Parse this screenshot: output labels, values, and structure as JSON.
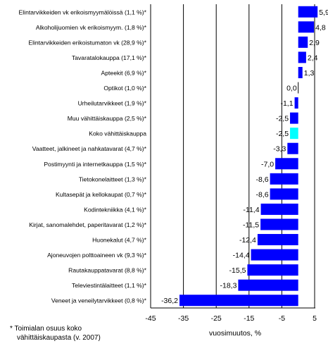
{
  "chart_data": {
    "type": "bar",
    "orientation": "horizontal",
    "xlabel": "vuosimuutos, %",
    "xlim": [
      -45,
      5
    ],
    "xticks": [
      -45,
      -35,
      -25,
      -15,
      -5,
      5
    ],
    "grid": true,
    "categories": [
      "Elintarvikkeiden vk erikoismyymälöissä (1,1 %)*",
      "Alkoholijuomien vk erikoismyym. (1,8 %)*",
      "Elintarvikkeiden erikoistumaton vk (28,9 %)*",
      "Tavaratalokauppa (17,1 %)*",
      "Apteekit (6,9 %)*",
      "Optikot (1,0 %)*",
      "Urheilutarvikkeet (1,9 %)*",
      "Muu vähittäiskauppa (2,5 %)*",
      "Koko vähittäiskauppa",
      "Vaatteet, jalkineet ja nahkatavarat (4,7 %)*",
      "Postimyynti ja internetkauppa (1,5 %)*",
      "Tietokonelaitteet (1,3 %)*",
      "Kultasepät ja kellokaupat (0,7 %)*",
      "Kodintekniikka (4,1 %)*",
      "Kirjat, sanomalehdet, paperitavarat (1,2 %)*",
      "Huonekalut (4,7 %)*",
      "Ajoneuvojen polttoaineen vk (9,3 %)*",
      "Rautakauppatavarat (8,8 %)*",
      "Televiestintälaitteet (1,1 %)*",
      "Veneet ja veneilytarvikkeet (0,8 %)*"
    ],
    "values": [
      5.9,
      4.8,
      2.9,
      2.4,
      1.3,
      0.0,
      -1.1,
      -2.5,
      -2.5,
      -3.3,
      -7.0,
      -8.6,
      -8.6,
      -11.4,
      -11.5,
      -12.4,
      -14.4,
      -15.5,
      -18.3,
      -36.2
    ],
    "value_labels": [
      "5,9",
      "4,8",
      "2,9",
      "2,4",
      "1,3",
      "0,0",
      "-1,1",
      "-2,5",
      "-2,5",
      "-3,3",
      "-7,0",
      "-8,6",
      "-8,6",
      "-11,4",
      "-11,5",
      "-12,4",
      "-14,4",
      "-15,5",
      "-18,3",
      "-36,2"
    ],
    "bar_color": "#0000ff",
    "highlight_color": "#00ffff",
    "highlight_category": "Koko vähittäiskauppa"
  },
  "footnote": {
    "line1": "* Toimialan osuus koko",
    "line2": "vähittäiskaupasta (v. 2007)"
  }
}
